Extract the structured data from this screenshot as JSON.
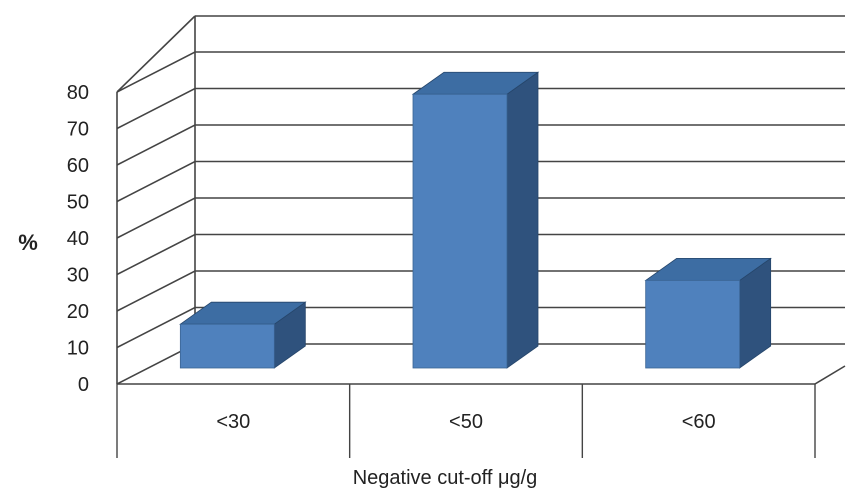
{
  "chart_data": {
    "type": "bar",
    "categories": [
      "<30",
      "<50",
      "<60"
    ],
    "values": [
      12,
      75,
      24
    ],
    "ylabel": "%",
    "xlabel": "Negative cut-off μg/g",
    "ylim": [
      0,
      80
    ],
    "yticks": [
      0,
      10,
      20,
      30,
      40,
      50,
      60,
      70,
      80
    ],
    "grid": true,
    "three_d": true,
    "colors": {
      "bar_front": "#4F81BD",
      "bar_top": "#3D6DA3",
      "bar_side": "#2F527D",
      "grid": "#444444"
    }
  }
}
